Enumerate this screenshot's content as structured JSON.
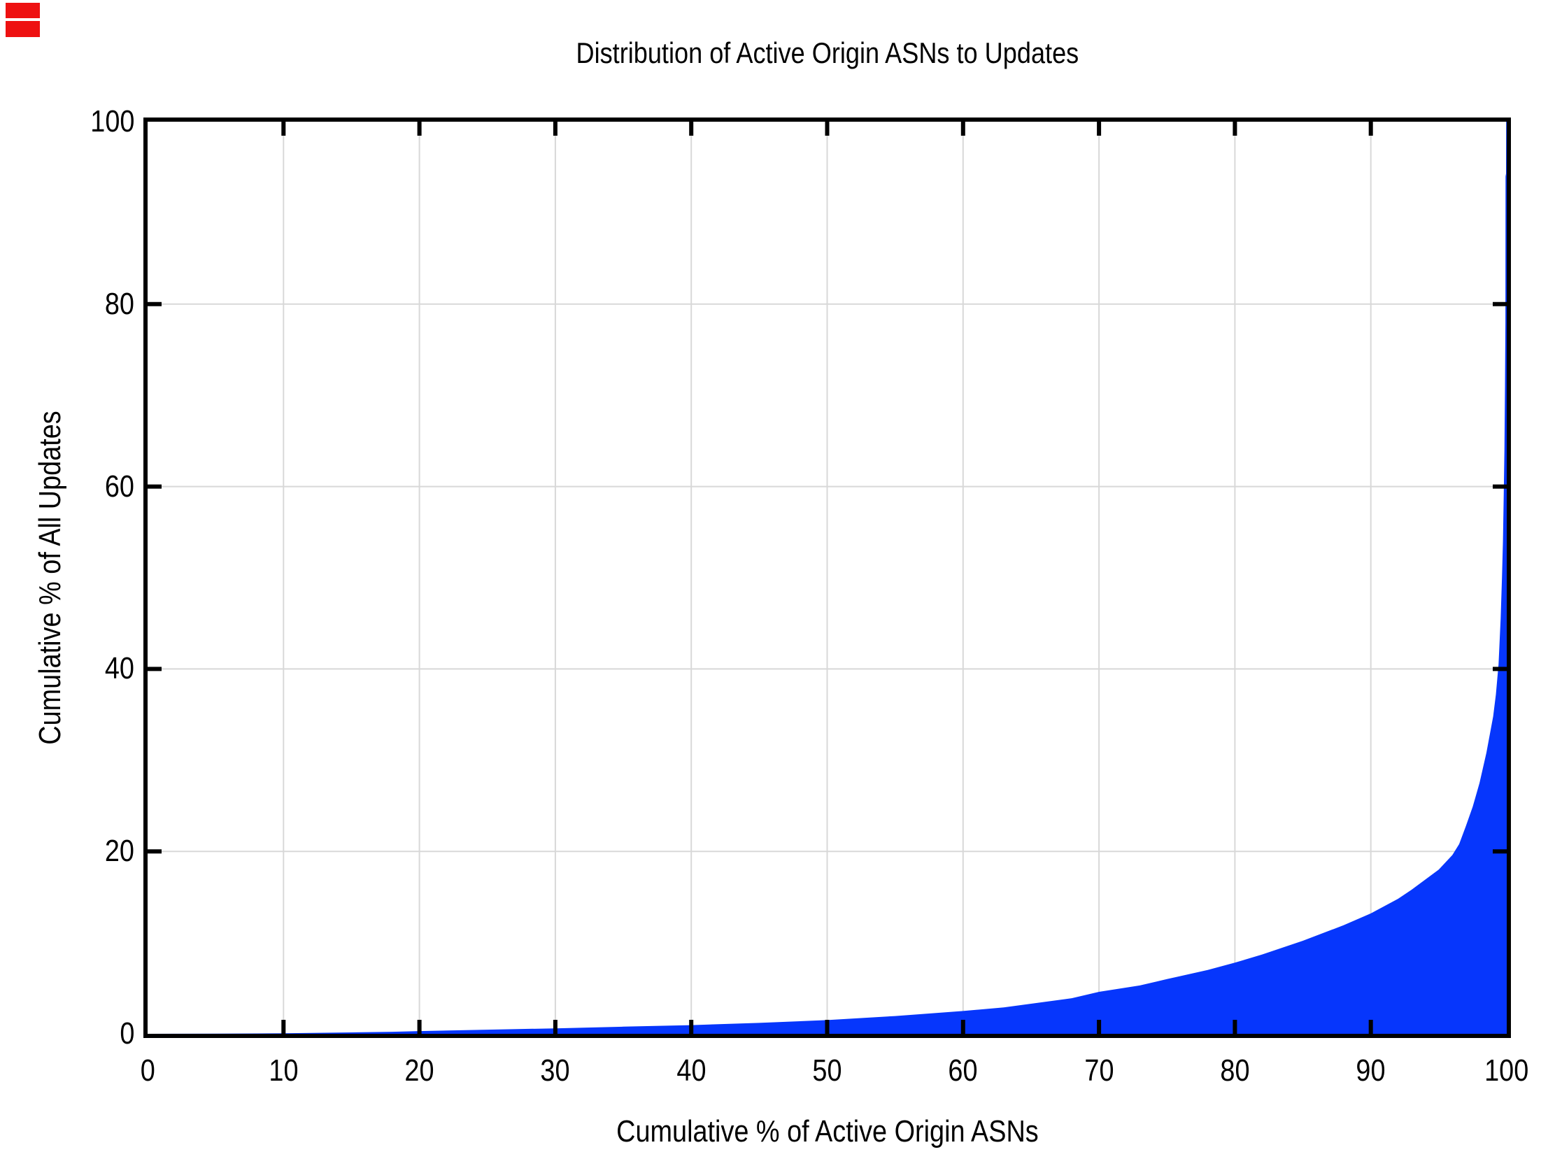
{
  "corner_marks": {
    "color": "#ee1111",
    "bars": [
      {
        "x": 8,
        "y": 4,
        "w": 49,
        "h": 22
      },
      {
        "x": 8,
        "y": 30,
        "w": 49,
        "h": 23
      }
    ]
  },
  "chart_data": {
    "type": "area",
    "title": "Distribution of Active Origin ASNs to Updates",
    "xlabel": "Cumulative % of Active Origin ASNs",
    "ylabel": "Cumulative % of All Updates",
    "xlim": [
      0,
      100
    ],
    "ylim": [
      0,
      100
    ],
    "x_ticks": [
      0,
      10,
      20,
      30,
      40,
      50,
      60,
      70,
      80,
      90,
      100
    ],
    "y_ticks": [
      0,
      20,
      40,
      60,
      80,
      100
    ],
    "grid": true,
    "legend": "none",
    "fill_color": "#0636fc",
    "grid_color": "#d8d8d8",
    "axis_color": "#000000",
    "points": [
      [
        0,
        0
      ],
      [
        2,
        0.01
      ],
      [
        5,
        0.02
      ],
      [
        8,
        0.04
      ],
      [
        10,
        0.06
      ],
      [
        12,
        0.09
      ],
      [
        15,
        0.15
      ],
      [
        18,
        0.22
      ],
      [
        20,
        0.3
      ],
      [
        25,
        0.45
      ],
      [
        30,
        0.6
      ],
      [
        35,
        0.78
      ],
      [
        40,
        0.95
      ],
      [
        45,
        1.2
      ],
      [
        50,
        1.5
      ],
      [
        55,
        1.95
      ],
      [
        60,
        2.5
      ],
      [
        63,
        2.9
      ],
      [
        65,
        3.3
      ],
      [
        68,
        3.9
      ],
      [
        70,
        4.6
      ],
      [
        73,
        5.3
      ],
      [
        75,
        6.0
      ],
      [
        78,
        7.0
      ],
      [
        80,
        7.8
      ],
      [
        82,
        8.7
      ],
      [
        85,
        10.2
      ],
      [
        88,
        11.9
      ],
      [
        90,
        13.2
      ],
      [
        92,
        14.8
      ],
      [
        93,
        15.8
      ],
      [
        94,
        16.9
      ],
      [
        95,
        18.0
      ],
      [
        96,
        19.6
      ],
      [
        96.5,
        20.8
      ],
      [
        97,
        22.8
      ],
      [
        97.5,
        24.9
      ],
      [
        98,
        27.5
      ],
      [
        98.5,
        30.8
      ],
      [
        99,
        34.8
      ],
      [
        99.2,
        37.2
      ],
      [
        99.4,
        40.5
      ],
      [
        99.55,
        45.5
      ],
      [
        99.65,
        50
      ],
      [
        99.72,
        54
      ],
      [
        99.78,
        59
      ],
      [
        99.83,
        64
      ],
      [
        99.87,
        71
      ],
      [
        99.9,
        78
      ],
      [
        99.91,
        94
      ],
      [
        99.95,
        94.3
      ],
      [
        99.96,
        100
      ],
      [
        100,
        100
      ]
    ]
  }
}
